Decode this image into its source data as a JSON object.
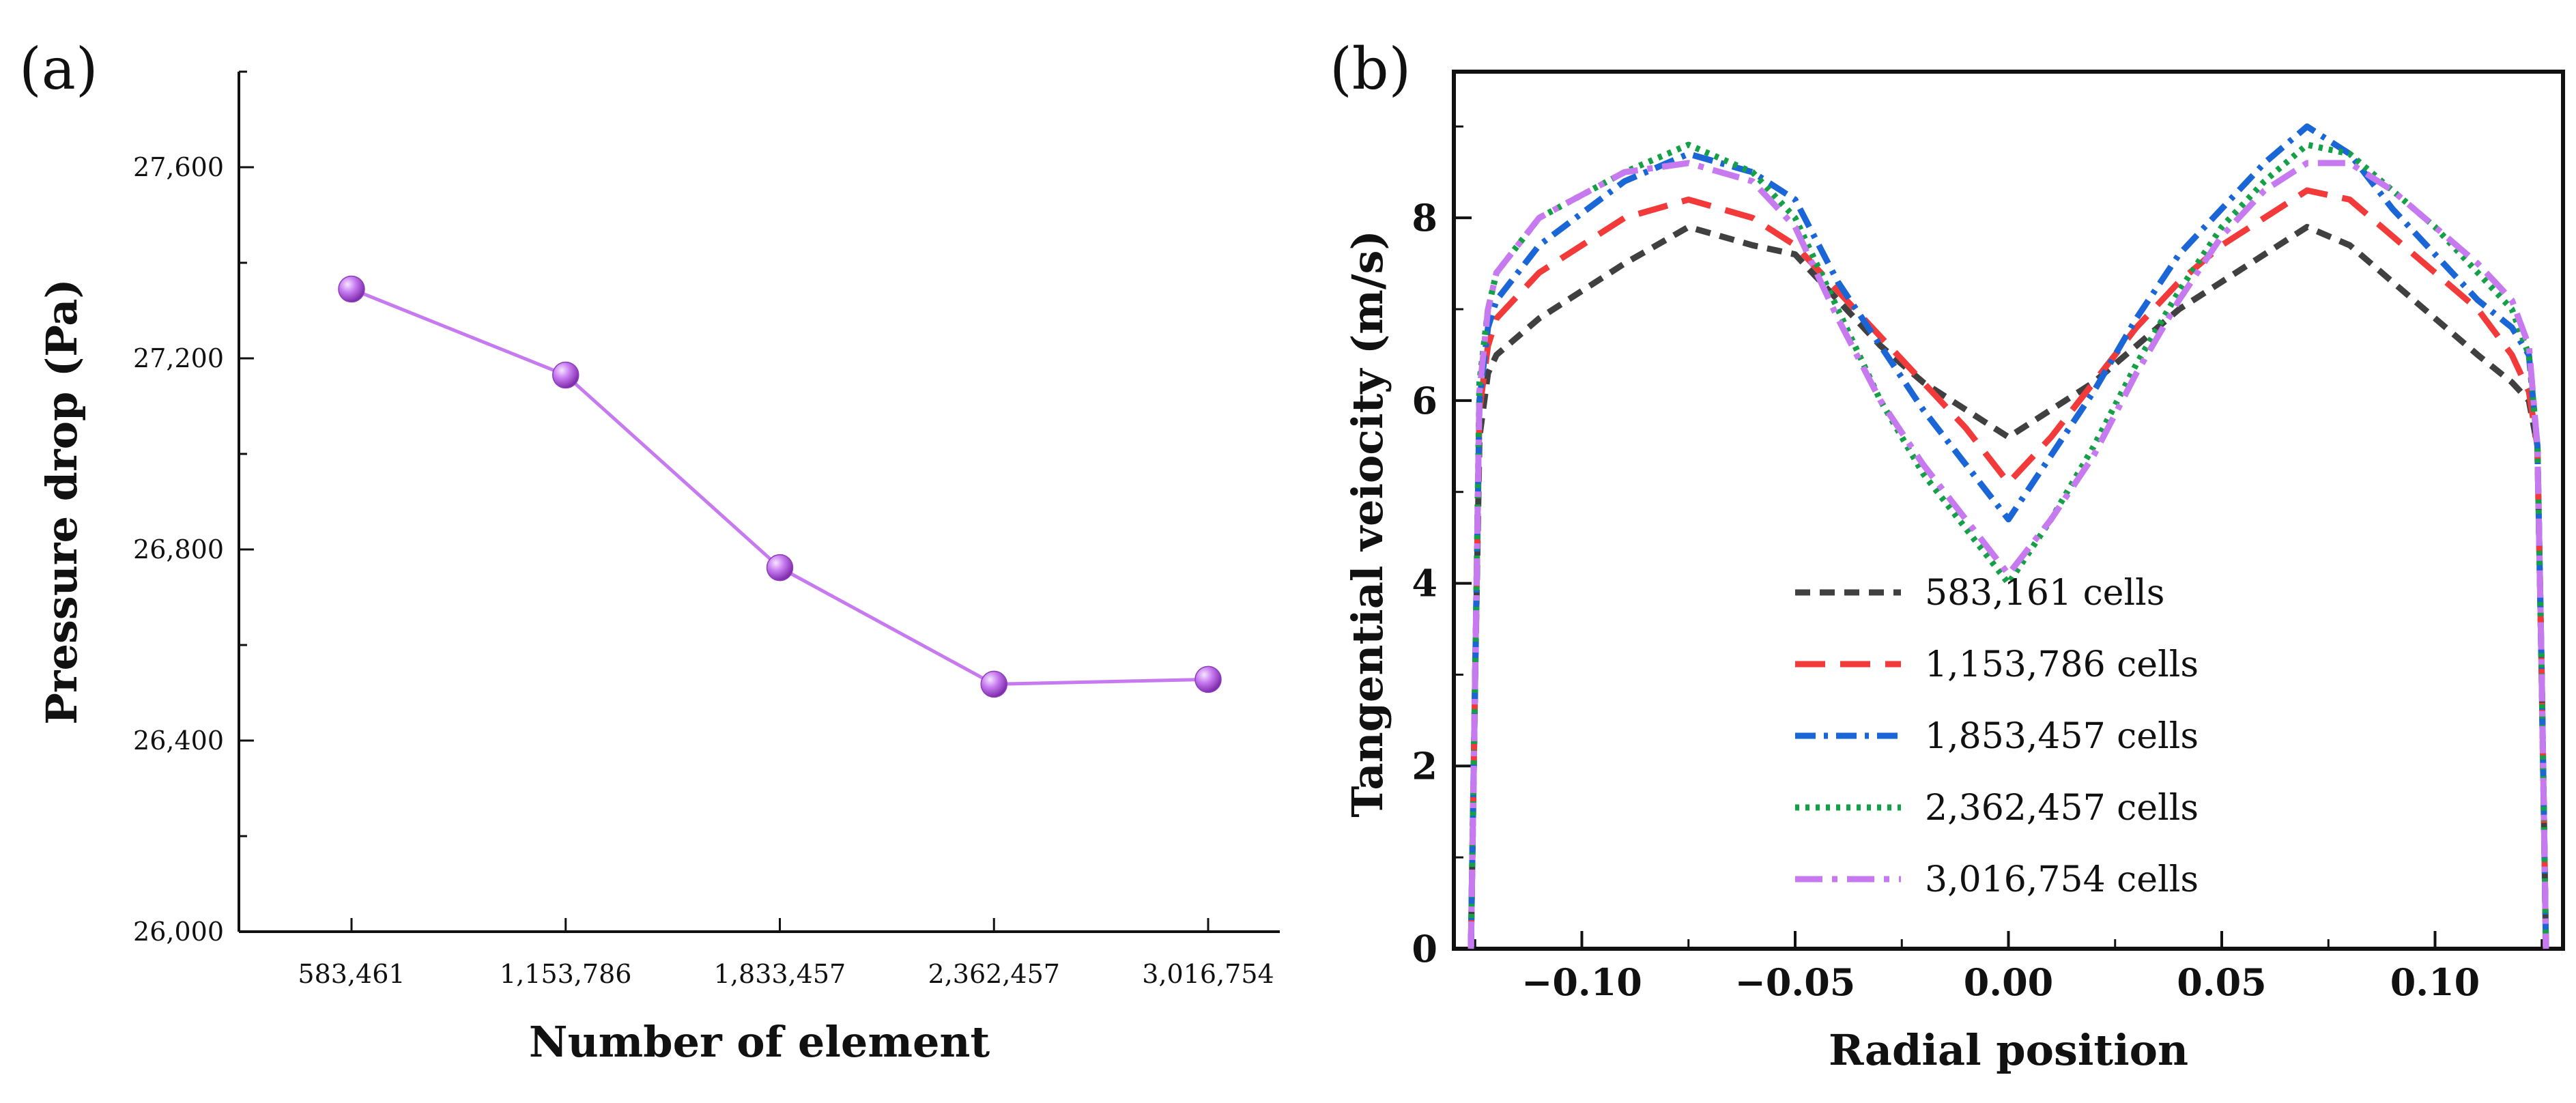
{
  "panels": {
    "a": {
      "label": "(a)"
    },
    "b": {
      "label": "(b)"
    }
  },
  "chart_data": [
    {
      "type": "line",
      "title": "",
      "xlabel": "Number of element",
      "ylabel": "Pressure drop (Pa)",
      "categories": [
        "583,461",
        "1,153,786",
        "1,833,457",
        "2,362,457",
        "3,016,754"
      ],
      "ylim": [
        26000,
        27800
      ],
      "yticks": [
        26000,
        26400,
        26800,
        27200,
        27600
      ],
      "ytick_labels": [
        "26,000",
        "26,400",
        "26,800",
        "27,200",
        "27,600"
      ],
      "series": [
        {
          "values": [
            27345,
            27165,
            26762,
            26518,
            26528
          ],
          "color": "#c77af0",
          "marker": "sphere"
        }
      ]
    },
    {
      "type": "line",
      "title": "",
      "xlabel": "Radial position",
      "ylabel": "Tangential veiocity (m/s)",
      "xlim": [
        -0.13,
        0.13
      ],
      "ylim": [
        0,
        9.6
      ],
      "xticks": [
        -0.1,
        -0.05,
        0.0,
        0.05,
        0.1
      ],
      "xtick_labels": [
        "−0.10",
        "−0.05",
        "0.00",
        "0.05",
        "0.10"
      ],
      "yticks": [
        0,
        2,
        4,
        6,
        8
      ],
      "ytick_labels": [
        "0",
        "2",
        "4",
        "6",
        "8"
      ],
      "legend_position": "bottom-center",
      "series": [
        {
          "name": "583,161 cells",
          "color": "#404040",
          "dash": "dash",
          "x": [
            -0.126,
            -0.125,
            -0.124,
            -0.122,
            -0.12,
            -0.11,
            -0.09,
            -0.075,
            -0.06,
            -0.05,
            -0.04,
            -0.03,
            -0.02,
            -0.01,
            0.0,
            0.01,
            0.02,
            0.03,
            0.04,
            0.05,
            0.06,
            0.07,
            0.08,
            0.09,
            0.1,
            0.11,
            0.118,
            0.122,
            0.124,
            0.125,
            0.126
          ],
          "y": [
            0.0,
            3.0,
            5.6,
            6.3,
            6.5,
            6.9,
            7.5,
            7.9,
            7.7,
            7.6,
            7.1,
            6.6,
            6.2,
            5.9,
            5.6,
            5.9,
            6.2,
            6.6,
            7.0,
            7.3,
            7.6,
            7.9,
            7.7,
            7.3,
            6.9,
            6.5,
            6.2,
            6.0,
            5.5,
            3.0,
            0.0
          ]
        },
        {
          "name": "1,153,786 cells",
          "color": "#f23a3a",
          "dash": "longdash",
          "x": [
            -0.126,
            -0.125,
            -0.124,
            -0.122,
            -0.12,
            -0.11,
            -0.09,
            -0.075,
            -0.06,
            -0.05,
            -0.04,
            -0.03,
            -0.02,
            -0.01,
            0.0,
            0.01,
            0.02,
            0.03,
            0.04,
            0.05,
            0.06,
            0.07,
            0.08,
            0.09,
            0.1,
            0.11,
            0.118,
            0.122,
            0.124,
            0.125,
            0.126
          ],
          "y": [
            0.0,
            3.0,
            5.9,
            6.6,
            6.9,
            7.4,
            8.0,
            8.2,
            8.0,
            7.7,
            7.2,
            6.7,
            6.2,
            5.7,
            5.1,
            5.6,
            6.2,
            6.8,
            7.3,
            7.7,
            8.0,
            8.3,
            8.2,
            7.8,
            7.4,
            7.0,
            6.5,
            6.1,
            5.5,
            3.0,
            0.0
          ]
        },
        {
          "name": "1,853,457 cells",
          "color": "#1a66d6",
          "dash": "dashdot",
          "x": [
            -0.126,
            -0.125,
            -0.124,
            -0.122,
            -0.12,
            -0.11,
            -0.09,
            -0.075,
            -0.06,
            -0.05,
            -0.04,
            -0.03,
            -0.02,
            -0.01,
            0.0,
            0.01,
            0.02,
            0.03,
            0.04,
            0.05,
            0.06,
            0.07,
            0.08,
            0.09,
            0.1,
            0.11,
            0.118,
            0.122,
            0.124,
            0.125,
            0.126
          ],
          "y": [
            0.0,
            3.0,
            6.0,
            6.8,
            7.1,
            7.7,
            8.4,
            8.7,
            8.5,
            8.2,
            7.3,
            6.6,
            5.9,
            5.3,
            4.7,
            5.4,
            6.1,
            6.9,
            7.6,
            8.1,
            8.6,
            9.0,
            8.7,
            8.1,
            7.6,
            7.1,
            6.8,
            6.5,
            5.5,
            3.0,
            0.0
          ]
        },
        {
          "name": "2,362,457 cells",
          "color": "#14a046",
          "dash": "dot",
          "x": [
            -0.126,
            -0.125,
            -0.124,
            -0.122,
            -0.12,
            -0.11,
            -0.09,
            -0.075,
            -0.06,
            -0.05,
            -0.04,
            -0.03,
            -0.02,
            -0.01,
            0.0,
            0.01,
            0.02,
            0.03,
            0.04,
            0.05,
            0.06,
            0.07,
            0.08,
            0.09,
            0.1,
            0.11,
            0.118,
            0.122,
            0.124,
            0.125,
            0.126
          ],
          "y": [
            0.0,
            3.0,
            6.2,
            7.0,
            7.4,
            8.0,
            8.5,
            8.8,
            8.5,
            8.0,
            7.0,
            6.0,
            5.2,
            4.6,
            4.0,
            4.7,
            5.5,
            6.4,
            7.2,
            7.9,
            8.4,
            8.8,
            8.7,
            8.3,
            7.9,
            7.4,
            7.0,
            6.5,
            5.5,
            3.0,
            0.0
          ]
        },
        {
          "name": "3,016,754 cells",
          "color": "#c77af0",
          "dash": "dashdotlong",
          "x": [
            -0.126,
            -0.125,
            -0.124,
            -0.122,
            -0.12,
            -0.11,
            -0.09,
            -0.075,
            -0.06,
            -0.05,
            -0.04,
            -0.03,
            -0.02,
            -0.01,
            0.0,
            0.01,
            0.02,
            0.03,
            0.04,
            0.05,
            0.06,
            0.07,
            0.08,
            0.09,
            0.1,
            0.11,
            0.118,
            0.122,
            0.124,
            0.125,
            0.126
          ],
          "y": [
            0.0,
            3.0,
            6.1,
            7.0,
            7.4,
            8.0,
            8.5,
            8.6,
            8.4,
            7.9,
            6.9,
            6.0,
            5.3,
            4.7,
            4.1,
            4.7,
            5.4,
            6.3,
            7.1,
            7.8,
            8.3,
            8.6,
            8.6,
            8.3,
            7.9,
            7.5,
            7.1,
            6.6,
            5.5,
            3.0,
            0.0
          ]
        }
      ]
    }
  ]
}
